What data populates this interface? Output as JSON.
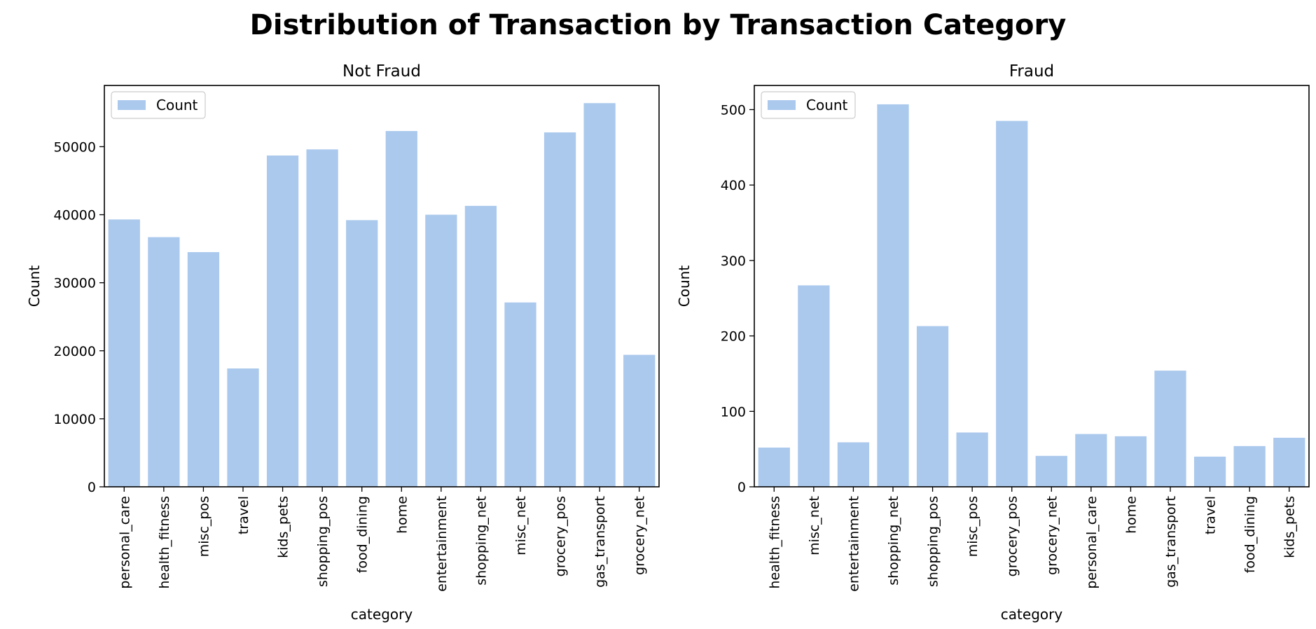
{
  "figure_title": "Distribution of Transaction by Transaction Category",
  "colors": {
    "bar": "#abc9ed",
    "axis": "#000000",
    "legend_border": "#cccccc"
  },
  "chart_data": [
    {
      "type": "bar",
      "title": "Not Fraud",
      "xlabel": "category",
      "ylabel": "Count",
      "legend": {
        "entries": [
          "Count"
        ],
        "placement": "upper-left"
      },
      "ylim": [
        0,
        59000
      ],
      "yticks": [
        0,
        10000,
        20000,
        30000,
        40000,
        50000
      ],
      "grid": false,
      "categories": [
        "personal_care",
        "health_fitness",
        "misc_pos",
        "travel",
        "kids_pets",
        "shopping_pos",
        "food_dining",
        "home",
        "entertainment",
        "shopping_net",
        "misc_net",
        "grocery_pos",
        "gas_transport",
        "grocery_net"
      ],
      "values": [
        39300,
        36700,
        34500,
        17400,
        48700,
        49600,
        39200,
        52300,
        40000,
        41300,
        27100,
        52100,
        56400,
        19400
      ]
    },
    {
      "type": "bar",
      "title": "Fraud",
      "xlabel": "category",
      "ylabel": "Count",
      "legend": {
        "entries": [
          "Count"
        ],
        "placement": "upper-left"
      },
      "ylim": [
        0,
        532
      ],
      "yticks": [
        0,
        100,
        200,
        300,
        400,
        500
      ],
      "grid": false,
      "categories": [
        "health_fitness",
        "misc_net",
        "entertainment",
        "shopping_net",
        "shopping_pos",
        "misc_pos",
        "grocery_pos",
        "grocery_net",
        "personal_care",
        "home",
        "gas_transport",
        "travel",
        "food_dining",
        "kids_pets"
      ],
      "values": [
        52,
        267,
        59,
        507,
        213,
        72,
        485,
        41,
        70,
        67,
        154,
        40,
        54,
        65
      ]
    }
  ]
}
